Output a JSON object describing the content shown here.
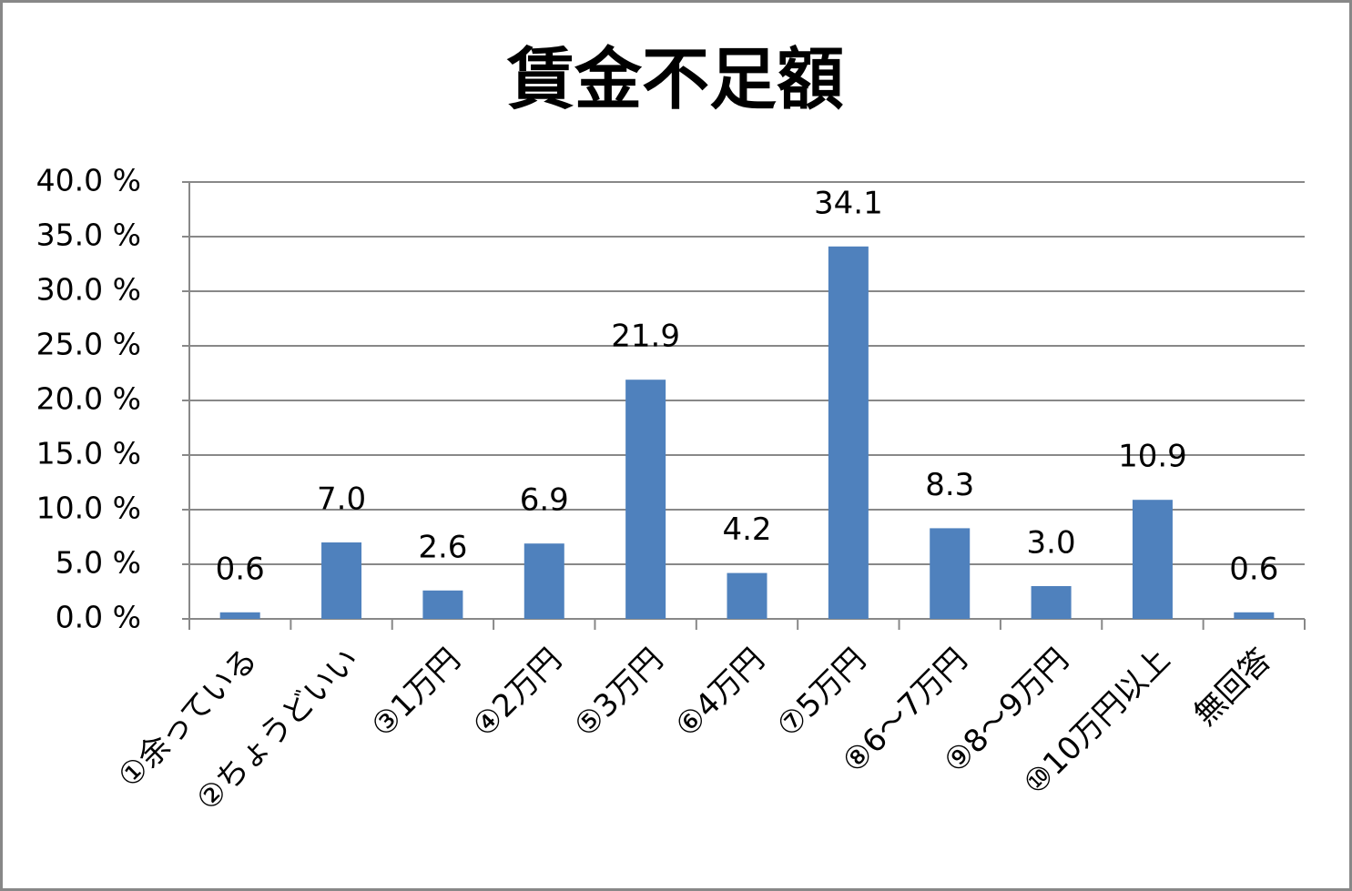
{
  "chart_data": {
    "type": "bar",
    "title": "賃金不足額",
    "categories": [
      "①余っている",
      "②ちょうどいい",
      "③1万円",
      "④2万円",
      "⑤3万円",
      "⑥4万円",
      "⑦5万円",
      "⑧6～7万円",
      "⑨8～9万円",
      "⑩10万円以上",
      "無回答"
    ],
    "values": [
      0.6,
      7.0,
      2.6,
      6.9,
      21.9,
      4.2,
      34.1,
      8.3,
      3.0,
      10.9,
      0.6
    ],
    "value_labels": [
      "0.6",
      "7.0",
      "2.6",
      "6.9",
      "21.9",
      "4.2",
      "34.1",
      "8.3",
      "3.0",
      "10.9",
      "0.6"
    ],
    "color": "#4f81bd",
    "ylim": [
      0,
      40
    ],
    "yticks": [
      {
        "value": 0,
        "label": "0.0 %"
      },
      {
        "value": 5,
        "label": "5.0 %"
      },
      {
        "value": 10,
        "label": "10.0 %"
      },
      {
        "value": 15,
        "label": "15.0 %"
      },
      {
        "value": 20,
        "label": "20.0 %"
      },
      {
        "value": 25,
        "label": "25.0 %"
      },
      {
        "value": 30,
        "label": "30.0 %"
      },
      {
        "value": 35,
        "label": "35.0 %"
      },
      {
        "value": 40,
        "label": "40.0 %"
      }
    ],
    "grid": true
  }
}
